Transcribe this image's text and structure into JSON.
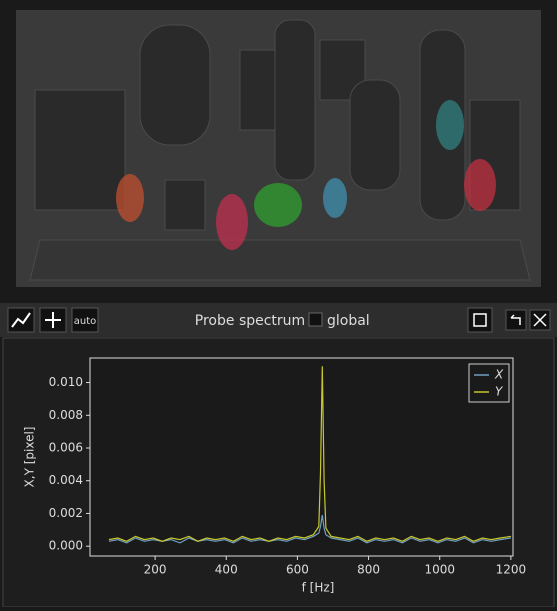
{
  "toolbar": {
    "auto_button": "auto",
    "title": "Probe spectrum",
    "checkbox_label": "global"
  },
  "chart_data": {
    "type": "line",
    "x_label": "f [Hz]",
    "y_label": "X,Y [pixel]",
    "x": [
      70,
      95,
      120,
      145,
      170,
      195,
      220,
      245,
      270,
      295,
      320,
      345,
      370,
      395,
      420,
      445,
      470,
      495,
      520,
      545,
      570,
      595,
      620,
      645,
      660,
      665,
      670,
      675,
      680,
      695,
      720,
      745,
      770,
      795,
      820,
      845,
      870,
      895,
      920,
      945,
      970,
      995,
      1020,
      1045,
      1070,
      1095,
      1120,
      1145,
      1170,
      1200
    ],
    "series": [
      {
        "name": "X",
        "color": "#6f9fc0",
        "values": [
          0.0003,
          0.0004,
          0.0002,
          0.0005,
          0.0003,
          0.0004,
          0.0003,
          0.0004,
          0.0002,
          0.0005,
          0.0003,
          0.0004,
          0.0003,
          0.0004,
          0.0002,
          0.0005,
          0.0003,
          0.0004,
          0.0003,
          0.0004,
          0.0003,
          0.0005,
          0.0004,
          0.0006,
          0.0008,
          0.0012,
          0.0019,
          0.0011,
          0.0007,
          0.0005,
          0.0004,
          0.0003,
          0.0005,
          0.0002,
          0.0004,
          0.0003,
          0.0004,
          0.0002,
          0.0005,
          0.0003,
          0.0004,
          0.0002,
          0.0004,
          0.0003,
          0.0005,
          0.0002,
          0.0004,
          0.0003,
          0.0004,
          0.0005
        ]
      },
      {
        "name": "Y",
        "color": "#c8c832",
        "values": [
          0.0004,
          0.0005,
          0.0003,
          0.0006,
          0.0004,
          0.0005,
          0.0003,
          0.0005,
          0.0004,
          0.0006,
          0.0003,
          0.0005,
          0.0004,
          0.0005,
          0.0003,
          0.0006,
          0.0004,
          0.0005,
          0.0003,
          0.0005,
          0.0004,
          0.0006,
          0.0005,
          0.0007,
          0.0012,
          0.0045,
          0.011,
          0.004,
          0.0011,
          0.0006,
          0.0005,
          0.0004,
          0.0006,
          0.0003,
          0.0005,
          0.0004,
          0.0005,
          0.0003,
          0.0006,
          0.0004,
          0.0005,
          0.0003,
          0.0005,
          0.0004,
          0.0006,
          0.0003,
          0.0005,
          0.0004,
          0.0005,
          0.0006
        ]
      }
    ],
    "xlim": [
      17,
      1206
    ],
    "ylim": [
      -0.0006,
      0.0115
    ],
    "xticks": [
      200,
      400,
      600,
      800,
      1000,
      1200
    ],
    "yticks": [
      {
        "value": 0,
        "label": "0.000"
      },
      {
        "value": 0.002,
        "label": "0.002"
      },
      {
        "value": 0.004,
        "label": "0.004"
      },
      {
        "value": 0.006,
        "label": "0.006"
      },
      {
        "value": 0.008,
        "label": "0.008"
      },
      {
        "value": 0.01,
        "label": "0.010"
      }
    ],
    "legend": "upper right"
  }
}
